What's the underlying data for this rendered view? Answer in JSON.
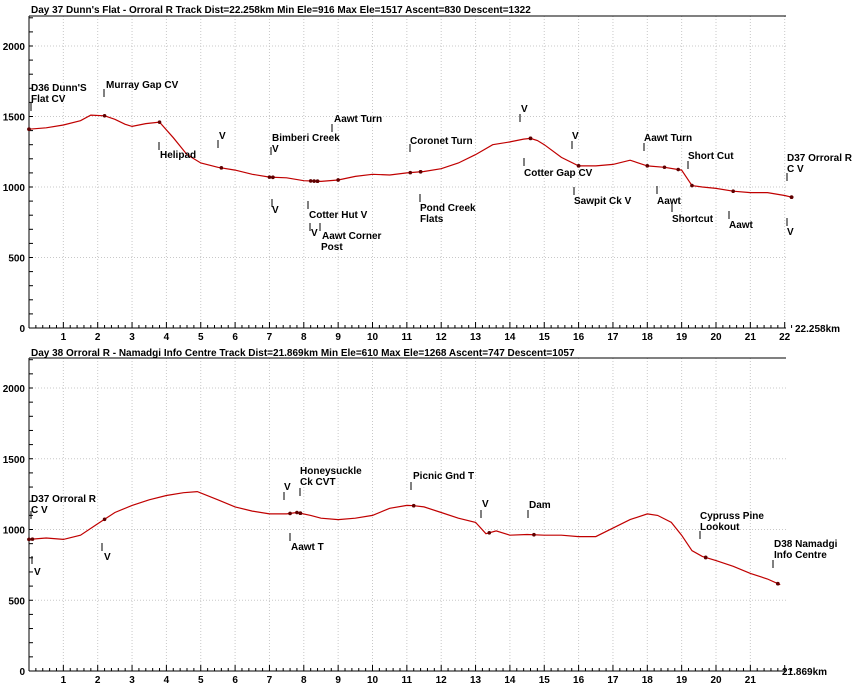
{
  "chart_data": [
    {
      "type": "line",
      "title": "Day 37 Dunn's Flat - Orroral R Track   Dist=22.258km   Min Ele=916   Max Ele=1517   Ascent=830   Descent=1322",
      "end_label": "22.258km",
      "xlim": [
        0,
        22.3
      ],
      "ylim": [
        0,
        2200
      ],
      "x_ticks": [
        1,
        2,
        3,
        4,
        5,
        6,
        7,
        8,
        9,
        10,
        11,
        12,
        13,
        14,
        15,
        16,
        17,
        18,
        19,
        20,
        21,
        22
      ],
      "y_ticks": [
        0,
        500,
        1000,
        1500,
        2000
      ],
      "grid": true,
      "color": "#c00000",
      "series": [
        {
          "x": [
            0,
            0.5,
            1.0,
            1.5,
            1.8,
            2.2,
            2.5,
            2.8,
            3.0,
            3.4,
            3.8,
            4.2,
            4.6,
            5.0,
            5.5,
            6.0,
            6.5,
            7.0,
            7.5,
            8.0,
            8.5,
            9.0,
            9.5,
            10.0,
            10.5,
            11.0,
            11.5,
            12.0,
            12.5,
            13.0,
            13.5,
            14.0,
            14.4,
            14.6,
            14.8,
            15.0,
            15.5,
            16.0,
            16.5,
            17.0,
            17.5,
            18.0,
            18.5,
            19.0,
            19.3,
            19.6,
            20.0,
            20.5,
            21.0,
            21.5,
            22.0,
            22.25
          ],
          "y": [
            1410,
            1420,
            1440,
            1470,
            1510,
            1505,
            1480,
            1445,
            1430,
            1450,
            1460,
            1350,
            1230,
            1170,
            1140,
            1120,
            1090,
            1070,
            1065,
            1045,
            1040,
            1050,
            1075,
            1090,
            1085,
            1100,
            1110,
            1130,
            1170,
            1230,
            1300,
            1320,
            1340,
            1345,
            1330,
            1300,
            1210,
            1150,
            1150,
            1160,
            1190,
            1150,
            1140,
            1120,
            1010,
            1000,
            990,
            970,
            960,
            960,
            940,
            925
          ]
        }
      ],
      "annotations": [
        {
          "text": "D36 Dunn'S",
          "x": 0
        },
        {
          "text": "Flat CV",
          "x": 0
        },
        {
          "text": "Murray Gap CV",
          "x": 2.2
        },
        {
          "text": "Helipad",
          "x": 3.8
        },
        {
          "text": "V",
          "x": 5.6
        },
        {
          "text": "Bimberi Creek",
          "x": 7.0
        },
        {
          "text": "V",
          "x": 7.1
        },
        {
          "text": "V",
          "x": 7.1
        },
        {
          "text": "Aawt Turn",
          "x": 9.0
        },
        {
          "text": "Cotter Hut V",
          "x": 8.2
        },
        {
          "text": "V",
          "x": 8.3
        },
        {
          "text": "Aawt Corner",
          "x": 8.4
        },
        {
          "text": "Post",
          "x": 8.4
        },
        {
          "text": "Coronet Turn",
          "x": 11.1
        },
        {
          "text": "Pond Creek",
          "x": 11.4
        },
        {
          "text": "Flats",
          "x": 11.4
        },
        {
          "text": "V",
          "x": 14.6
        },
        {
          "text": "Cotter Gap CV",
          "x": 14.6
        },
        {
          "text": "V",
          "x": 16.0
        },
        {
          "text": "Sawpit Ck V",
          "x": 16.0
        },
        {
          "text": "Aawt Turn",
          "x": 18.0
        },
        {
          "text": "Short Cut",
          "x": 19.3
        },
        {
          "text": "Aawt",
          "x": 18.5
        },
        {
          "text": "Shortcut",
          "x": 18.9
        },
        {
          "text": "Aawt",
          "x": 20.5
        },
        {
          "text": "D37 Orroral R",
          "x": 22.2
        },
        {
          "text": "C V",
          "x": 22.2
        },
        {
          "text": "V",
          "x": 22.2
        }
      ]
    },
    {
      "type": "line",
      "title": "Day 38 Orroral R - Namadgi Info Centre Track   Dist=21.869km   Min Ele=610   Max Ele=1268   Ascent=747   Descent=1057",
      "end_label": "21.869km",
      "xlim": [
        0,
        22.3
      ],
      "ylim": [
        0,
        2200
      ],
      "x_ticks": [
        1,
        2,
        3,
        4,
        5,
        6,
        7,
        8,
        9,
        10,
        11,
        12,
        13,
        14,
        15,
        16,
        17,
        18,
        19,
        20,
        21
      ],
      "y_ticks": [
        0,
        500,
        1000,
        1500,
        2000
      ],
      "grid": true,
      "color": "#c00000",
      "series": [
        {
          "x": [
            0,
            0.5,
            1.0,
            1.5,
            2.0,
            2.5,
            3.0,
            3.5,
            4.0,
            4.5,
            4.9,
            5.5,
            6.0,
            6.5,
            7.0,
            7.5,
            7.8,
            8.2,
            8.5,
            9.0,
            9.5,
            10.0,
            10.5,
            11.0,
            11.2,
            11.5,
            12.0,
            12.5,
            13.0,
            13.3,
            13.6,
            14.0,
            14.5,
            15.0,
            15.5,
            16.0,
            16.5,
            17.0,
            17.5,
            18.0,
            18.3,
            18.7,
            19.0,
            19.3,
            19.6,
            20.0,
            20.5,
            21.0,
            21.5,
            21.87
          ],
          "y": [
            930,
            940,
            930,
            960,
            1040,
            1120,
            1170,
            1210,
            1240,
            1260,
            1268,
            1210,
            1160,
            1130,
            1110,
            1110,
            1120,
            1100,
            1080,
            1070,
            1080,
            1100,
            1150,
            1170,
            1168,
            1160,
            1120,
            1080,
            1050,
            970,
            990,
            960,
            965,
            960,
            960,
            950,
            950,
            1010,
            1070,
            1110,
            1100,
            1050,
            960,
            850,
            810,
            780,
            740,
            690,
            650,
            610
          ]
        }
      ],
      "annotations": [
        {
          "text": "D37 Orroral R",
          "x": 0
        },
        {
          "text": "C V",
          "x": 0
        },
        {
          "text": "V",
          "x": 0.1
        },
        {
          "text": "V",
          "x": 2.2
        },
        {
          "text": "V",
          "x": 7.6
        },
        {
          "text": "Honeysuckle",
          "x": 7.9
        },
        {
          "text": "Ck CVT",
          "x": 7.9
        },
        {
          "text": "Aawt T",
          "x": 7.8
        },
        {
          "text": "Picnic Gnd T",
          "x": 11.2
        },
        {
          "text": "V",
          "x": 13.4
        },
        {
          "text": "Dam",
          "x": 14.7
        },
        {
          "text": "Cypruss Pine",
          "x": 19.7
        },
        {
          "text": "Lookout",
          "x": 19.7
        },
        {
          "text": "D38 Namadgi",
          "x": 21.8
        },
        {
          "text": "Info Centre",
          "x": 21.8
        }
      ]
    }
  ]
}
